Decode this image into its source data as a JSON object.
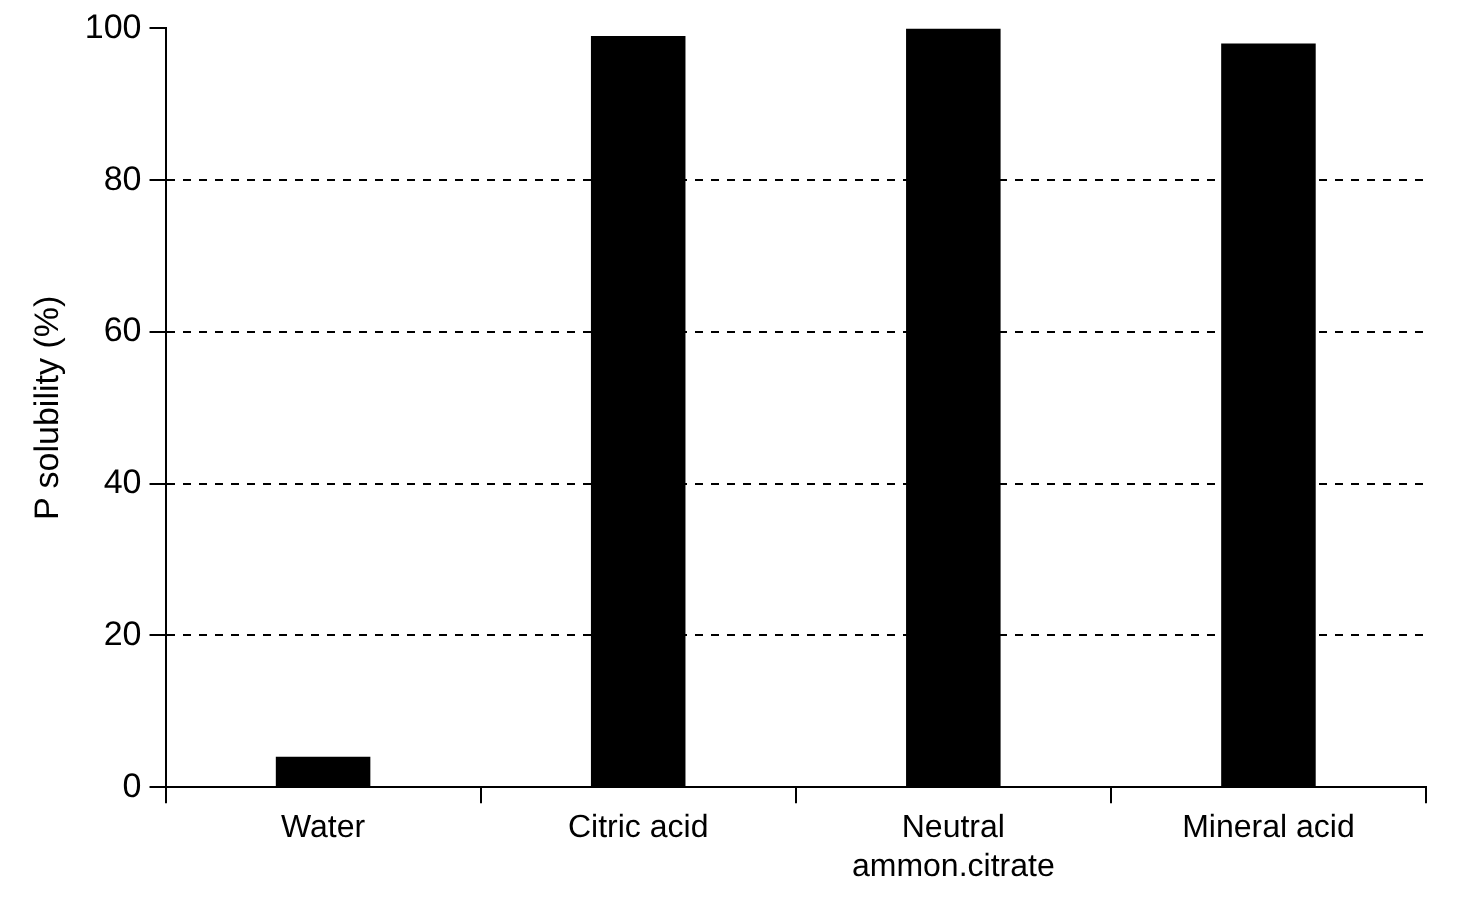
{
  "chart_data": {
    "type": "bar",
    "ylabel": "P solubility (%)",
    "categories": [
      "Water",
      "Citric acid",
      "Neutral ammon.citrate",
      "Mineral acid"
    ],
    "values": [
      4,
      99,
      100,
      98
    ],
    "color": "#000000",
    "ylim": [
      0,
      100
    ],
    "yticks": [
      0,
      20,
      40,
      60,
      80,
      100
    ],
    "grid": "y",
    "line_style": "dashed",
    "legend": false
  }
}
